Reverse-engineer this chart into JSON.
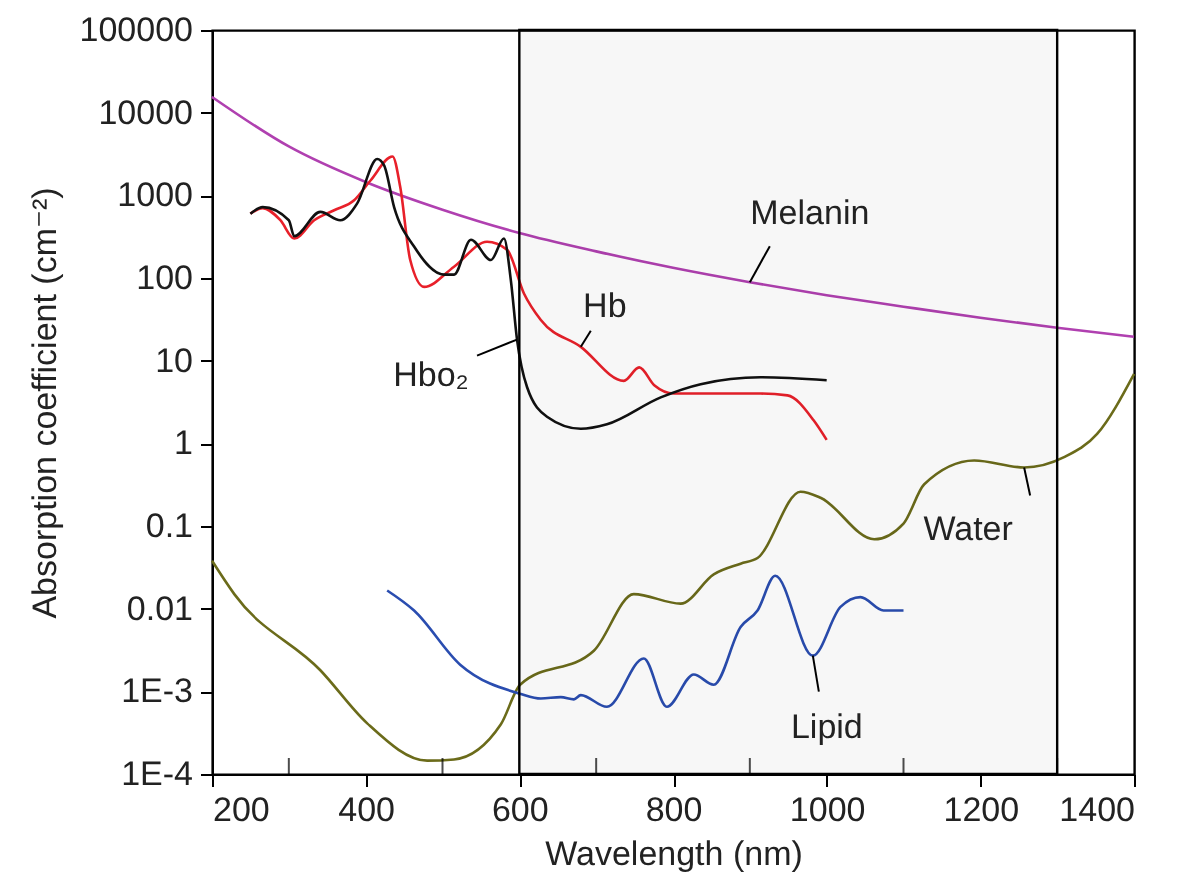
{
  "chart_data": {
    "type": "line",
    "xlabel": "Wavelength (nm)",
    "ylabel": "Absorption coefficient (cm⁻²)",
    "log": "y",
    "grid": false,
    "marker": "none",
    "line_style": "solid",
    "xlim": [
      200,
      1400
    ],
    "ylim": [
      0.0001,
      100000
    ],
    "xticks": [
      200,
      {
        "value": 300,
        "label": null
      },
      400,
      {
        "value": 500,
        "label": null
      },
      600,
      {
        "value": 700,
        "label": null
      },
      800,
      {
        "value": 900,
        "label": null
      },
      1000,
      {
        "value": 1100,
        "label": null
      },
      1200,
      {
        "value": 1300,
        "label": null
      },
      1400
    ],
    "yticks": [
      {
        "value": 0.0001,
        "label": "1E-4"
      },
      {
        "value": 0.001,
        "label": "1E-3"
      },
      0.01,
      0.1,
      1,
      10,
      100,
      1000,
      10000,
      100000
    ],
    "bands": [
      {
        "axis": "x",
        "from": 600,
        "to": 1300
      }
    ],
    "series": [
      {
        "name": "Melanin",
        "color": "#b040b0",
        "x": [
          200,
          300,
          400,
          500,
          600,
          700,
          800,
          900,
          1000,
          1100,
          1200,
          1300,
          1400
        ],
        "values": [
          15500,
          3900,
          1450,
          670,
          350,
          210,
          133,
          89,
          62,
          45,
          33,
          25,
          19.5
        ]
      },
      {
        "name": "Hb",
        "color": "#e8202a",
        "x": [
          250,
          266,
          289,
          307,
          333,
          359,
          385,
          406,
          435,
          445,
          458,
          476,
          515,
          558,
          584,
          606,
          628,
          680,
          736,
          756,
          776,
          801,
          914,
          949,
          983,
          1000
        ],
        "values": [
          600,
          700,
          500,
          300,
          500,
          660,
          870,
          1500,
          2950,
          1260,
          165,
          78,
          137,
          275,
          220,
          65,
          31,
          14.7,
          5.7,
          8.3,
          5,
          4,
          4,
          3.8,
          1.9,
          1.1
        ]
      },
      {
        "name": "Hbo₂",
        "color": "#111111",
        "x": [
          250,
          266,
          300,
          307,
          341,
          367,
          389,
          415,
          424,
          437,
          463,
          502,
          515,
          537,
          563,
          580,
          589,
          597,
          610,
          636,
          680,
          714,
          784,
          836,
          914,
          1000
        ],
        "values": [
          600,
          720,
          500,
          320,
          630,
          500,
          800,
          2750,
          2300,
          720,
          240,
          110,
          110,
          290,
          165,
          300,
          93,
          18,
          4.8,
          2.1,
          1.5,
          1.7,
          3.6,
          5.2,
          6.3,
          5.8
        ]
      },
      {
        "name": "Water",
        "color": "#6b6b1a",
        "x": [
          200,
          229,
          341,
          402,
          480,
          515,
          576,
          601,
          697,
          749,
          810,
          853,
          888,
          910,
          966,
          992,
          1062,
          1100,
          1127,
          1192,
          1257,
          1309,
          1352,
          1400
        ],
        "values": [
          0.038,
          0.015,
          0.0018,
          0.00041,
          0.000145,
          0.00015,
          0.0004,
          0.0012,
          0.0031,
          0.015,
          0.0115,
          0.026,
          0.035,
          0.041,
          0.26,
          0.22,
          0.069,
          0.107,
          0.32,
          0.62,
          0.51,
          0.68,
          1.3,
          6.9
        ]
      },
      {
        "name": "Lipid",
        "color": "#2a4db0",
        "x": [
          428,
          463,
          523,
          602,
          628,
          654,
          671,
          680,
          714,
          762,
          792,
          827,
          853,
          888,
          910,
          933,
          982,
          1018,
          1044,
          1074,
          1100
        ],
        "values": [
          0.0166,
          0.0095,
          0.0021,
          0.00093,
          0.00082,
          0.00085,
          0.0008,
          0.0009,
          0.00065,
          0.0025,
          0.00065,
          0.0016,
          0.0012,
          0.006,
          0.0095,
          0.025,
          0.0027,
          0.0105,
          0.0138,
          0.0095,
          0.0095
        ]
      }
    ]
  }
}
